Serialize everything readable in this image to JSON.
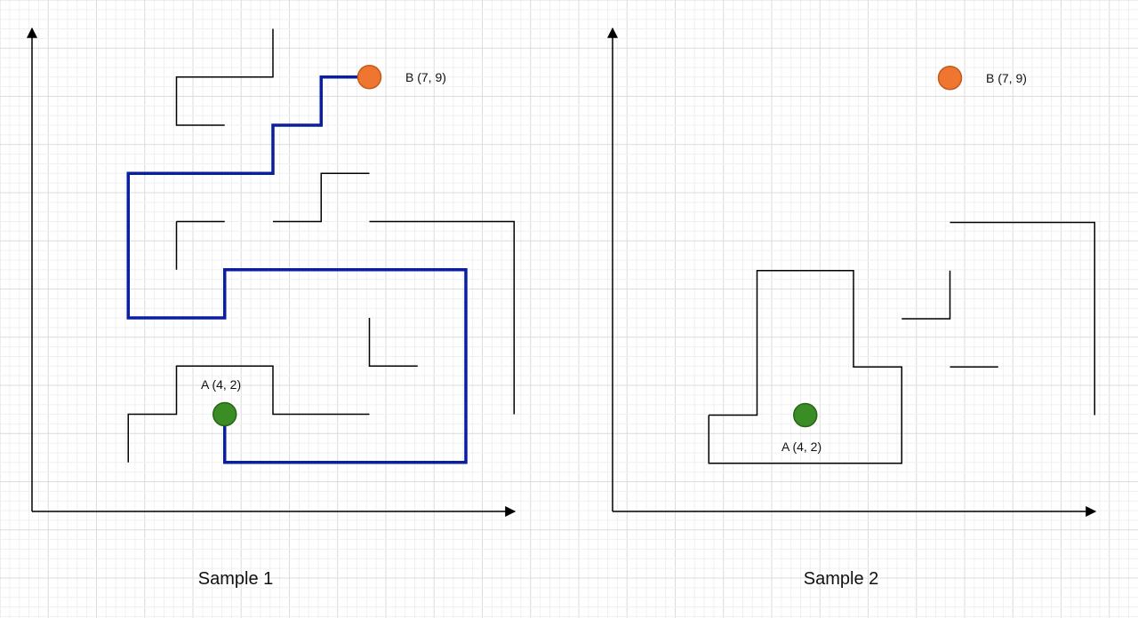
{
  "colors": {
    "grid_minor": "#f0f0f0",
    "grid_major": "#dcdcdc",
    "axis": "#000000",
    "wall": "#000000",
    "path": "#0a1fa0",
    "start_fill": "#3a8c24",
    "start_stroke": "#276516",
    "end_fill": "#ee7630",
    "end_stroke": "#c45a1b"
  },
  "samples": [
    {
      "caption": "Sample 1",
      "point_a": {
        "label": "A (4, 2)",
        "x": 4,
        "y": 2
      },
      "point_b": {
        "label": "B (7, 9)",
        "x": 7,
        "y": 9
      },
      "walls": [
        [
          [
            5,
            10
          ],
          [
            5,
            9
          ],
          [
            3,
            9
          ],
          [
            3,
            8
          ],
          [
            4,
            8
          ]
        ],
        [
          [
            3,
            6
          ],
          [
            3,
            5
          ]
        ],
        [
          [
            3,
            6
          ],
          [
            4,
            6
          ]
        ],
        [
          [
            5,
            6
          ],
          [
            6,
            6
          ],
          [
            6,
            7
          ],
          [
            7,
            7
          ]
        ],
        [
          [
            7,
            6
          ],
          [
            10,
            6
          ],
          [
            10,
            2
          ]
        ],
        [
          [
            7,
            4
          ],
          [
            7,
            3
          ],
          [
            8,
            3
          ]
        ],
        [
          [
            2,
            1
          ],
          [
            2,
            2
          ],
          [
            3,
            2
          ],
          [
            3,
            3
          ],
          [
            5,
            3
          ],
          [
            5,
            2
          ],
          [
            7,
            2
          ]
        ]
      ],
      "path": [
        [
          7,
          9
        ],
        [
          6,
          9
        ],
        [
          6,
          8
        ],
        [
          5,
          8
        ],
        [
          5,
          7
        ],
        [
          2,
          7
        ],
        [
          2,
          4
        ],
        [
          4,
          4
        ],
        [
          4,
          5
        ],
        [
          9,
          5
        ],
        [
          9,
          1
        ],
        [
          4,
          1
        ],
        [
          4,
          2
        ]
      ]
    },
    {
      "caption": "Sample 2",
      "point_a": {
        "label": "A (4, 2)",
        "x": 4,
        "y": 2
      },
      "point_b": {
        "label": "B (7, 9)",
        "x": 7,
        "y": 9
      },
      "walls": [
        [
          [
            2,
            2
          ],
          [
            3,
            2
          ],
          [
            3,
            5
          ],
          [
            5,
            5
          ],
          [
            5,
            3
          ],
          [
            6,
            3
          ],
          [
            6,
            1
          ],
          [
            2,
            1
          ],
          [
            2,
            2
          ]
        ],
        [
          [
            6,
            4
          ],
          [
            7,
            4
          ],
          [
            7,
            5
          ]
        ],
        [
          [
            7,
            3
          ],
          [
            8,
            3
          ]
        ],
        [
          [
            7,
            6
          ],
          [
            10,
            6
          ],
          [
            10,
            2
          ]
        ]
      ],
      "path": []
    }
  ]
}
